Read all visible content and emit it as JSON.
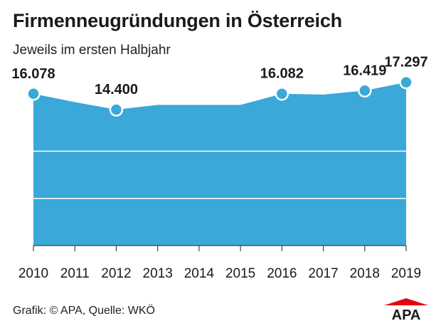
{
  "header": {
    "title": "Firmenneugründungen in Österreich",
    "subtitle": "Jeweils im ersten Halbjahr"
  },
  "chart_data": {
    "type": "area",
    "categories": [
      "2010",
      "2011",
      "2012",
      "2013",
      "2014",
      "2015",
      "2016",
      "2017",
      "2018",
      "2019"
    ],
    "values": [
      16078,
      15200,
      14400,
      14900,
      14900,
      14900,
      16082,
      16000,
      16419,
      17297
    ],
    "labeled_points": [
      {
        "index": 0,
        "label": "16.078"
      },
      {
        "index": 2,
        "label": "14.400"
      },
      {
        "index": 6,
        "label": "16.082"
      },
      {
        "index": 8,
        "label": "16.419"
      },
      {
        "index": 9,
        "label": "17.297"
      }
    ],
    "ylim": [
      0,
      23000
    ],
    "grid": "horizontal",
    "color": "#3aa8d8",
    "xlabel": "",
    "ylabel": ""
  },
  "footer": {
    "source": "Grafik: © APA, Quelle: WKÖ",
    "logo_text": "APA",
    "logo_color": "#e30613"
  }
}
